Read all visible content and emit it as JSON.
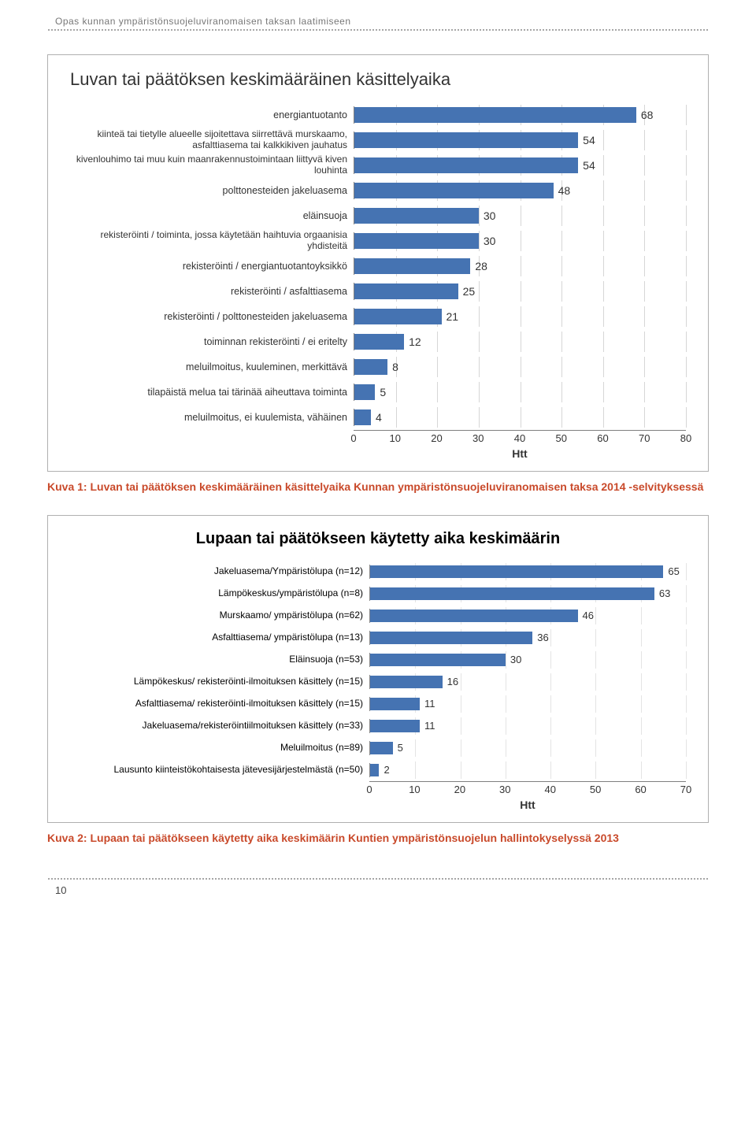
{
  "header": {
    "title": "Opas kunnan ympäristönsuojeluviranomaisen taksan laatimiseen"
  },
  "page_number": "10",
  "chart1": {
    "type": "bar",
    "title": "Luvan tai päätöksen keskimääräinen käsittelyaika",
    "bar_color": "#4573b2",
    "grid_color": "#d6d6d6",
    "label_color": "#333333",
    "value_label_color": "#333333",
    "axis_title": "Htt",
    "xlim": 80,
    "x_ticks": [
      0,
      10,
      20,
      30,
      40,
      50,
      60,
      70,
      80
    ],
    "items": [
      {
        "label": "energiantuotanto",
        "value": 68
      },
      {
        "label": "kiinteä tai tietylle alueelle sijoitettava siirrettävä murskaamo, asfalttiasema tai kalkkikiven jauhatus",
        "value": 54,
        "twoLine": true
      },
      {
        "label": "kivenlouhimo tai muu kuin maanrakennustoimintaan liittyvä kiven louhinta",
        "value": 54,
        "twoLine": true
      },
      {
        "label": "polttonesteiden jakeluasema",
        "value": 48
      },
      {
        "label": "eläinsuoja",
        "value": 30
      },
      {
        "label": "rekisteröinti / toiminta, jossa käytetään haihtuvia orgaanisia yhdisteitä",
        "value": 30,
        "twoLine": true
      },
      {
        "label": "rekisteröinti / energiantuotantoyksikkö",
        "value": 28
      },
      {
        "label": "rekisteröinti / asfalttiasema",
        "value": 25
      },
      {
        "label": "rekisteröinti / polttonesteiden jakeluasema",
        "value": 21
      },
      {
        "label": "toiminnan rekisteröinti / ei eritelty",
        "value": 12
      },
      {
        "label": "meluilmoitus, kuuleminen, merkittävä",
        "value": 8
      },
      {
        "label": "tilapäistä melua tai tärinää aiheuttava toiminta",
        "value": 5
      },
      {
        "label": "meluilmoitus, ei kuulemista, vähäinen",
        "value": 4
      }
    ]
  },
  "caption1": "Kuva 1: Luvan tai päätöksen keskimääräinen käsittelyaika Kunnan ympäristönsuojeluviranomaisen taksa 2014 -selvityksessä",
  "chart2": {
    "type": "bar",
    "title": "Lupaan tai päätökseen käytetty aika keskimäärin",
    "bar_color": "#4573b2",
    "grid_color": "#e4e4e4",
    "label_color": "#000000",
    "axis_title": "Htt",
    "xlim": 70,
    "x_ticks": [
      0,
      10,
      20,
      30,
      40,
      50,
      60,
      70
    ],
    "items": [
      {
        "label": "Jakeluasema/Ympäristölupa (n=12)",
        "value": 65
      },
      {
        "label": "Lämpökeskus/ympäristölupa (n=8)",
        "value": 63
      },
      {
        "label": "Murskaamo/ ympäristölupa (n=62)",
        "value": 46
      },
      {
        "label": "Asfalttiasema/ ympäristölupa (n=13)",
        "value": 36
      },
      {
        "label": "Eläinsuoja (n=53)",
        "value": 30
      },
      {
        "label": "Lämpökeskus/ rekisteröinti-ilmoituksen käsittely (n=15)",
        "value": 16
      },
      {
        "label": "Asfalttiasema/ rekisteröinti-ilmoituksen käsittely (n=15)",
        "value": 11
      },
      {
        "label": "Jakeluasema/rekisteröintiilmoituksen käsittely (n=33)",
        "value": 11
      },
      {
        "label": "Meluilmoitus (n=89)",
        "value": 5
      },
      {
        "label": "Lausunto kiinteistökohtaisesta jätevesijärjestelmästä (n=50)",
        "value": 2
      }
    ]
  },
  "caption2": "Kuva 2: Lupaan tai päätökseen käytetty aika keskimäärin Kuntien ympäristönsuojelun hallintokyselyssä 2013"
}
